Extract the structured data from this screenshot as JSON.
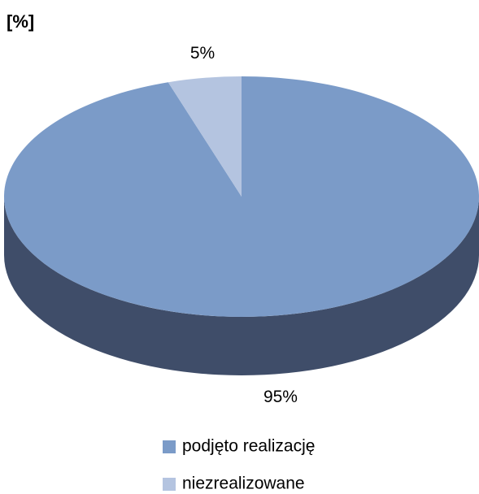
{
  "chart_data": {
    "type": "pie",
    "title": "[%]",
    "categories": [
      "podjęto realizację",
      "niezrealizowane"
    ],
    "values": [
      95,
      5
    ],
    "value_labels": [
      "95%",
      "5%"
    ],
    "colors": [
      "#7b9bc8",
      "#b4c4e0"
    ],
    "side_color": "#3f4d69",
    "legend": "bottom"
  }
}
